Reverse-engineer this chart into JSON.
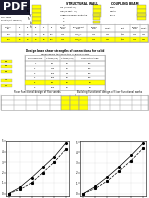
{
  "bg_color": "#ffffff",
  "yellow": "#FFFF00",
  "pdf_label": "PDF",
  "pdf_box_color": "#1a1a2e",
  "gray_line": "#999999",
  "table2_title": "Design base shear strengths of connections for solid",
  "table2_subtitle": "diaphragms tested in the in-plane x-axis",
  "table2_headers": [
    "Reference No.",
    "V-type (kN)",
    "V-type (kip)",
    "Connection type"
  ],
  "table2_data": [
    [
      "1",
      "89",
      "20",
      "CIP"
    ],
    [
      "2",
      "110",
      "25",
      "CIP"
    ],
    [
      "3",
      "150",
      "34",
      "CIP"
    ],
    [
      "4",
      "200",
      "45",
      "CIP"
    ],
    [
      "5",
      "89",
      "20",
      "PC"
    ],
    [
      "6",
      "250",
      "56",
      "PC"
    ]
  ],
  "table2_highlight_row": 5,
  "graph1_x": [
    0,
    1,
    2,
    3,
    4,
    5
  ],
  "graph1_y1": [
    0.0,
    0.6,
    1.5,
    2.5,
    3.5,
    4.8
  ],
  "graph1_y2": [
    0.0,
    0.4,
    1.0,
    2.0,
    3.0,
    4.2
  ],
  "graph2_x": [
    0,
    1,
    2,
    3,
    4,
    5
  ],
  "graph2_y1": [
    0.0,
    0.7,
    1.6,
    2.6,
    3.7,
    4.9
  ],
  "graph2_y2": [
    0.0,
    0.5,
    1.2,
    2.2,
    3.2,
    4.4
  ],
  "label_a": "(a)",
  "label_b": "(b)"
}
